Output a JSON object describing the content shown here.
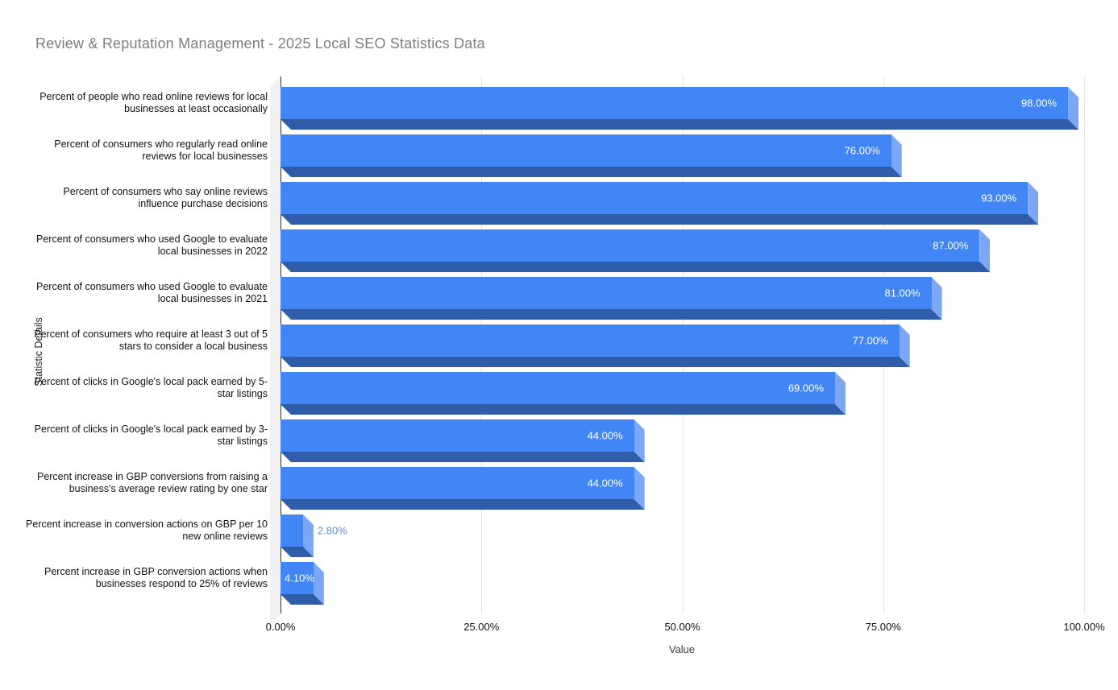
{
  "title": "Review & Reputation Management - 2025 Local SEO Statistics Data",
  "chart_data": {
    "type": "bar",
    "orientation": "horizontal",
    "title": "Review & Reputation Management - 2025 Local SEO Statistics Data",
    "categories": [
      "Percent of people who read online reviews for local businesses at least occasionally",
      "Percent of consumers who regularly read online reviews for local businesses",
      "Percent of consumers who say online reviews influence purchase decisions",
      "Percent of consumers who used Google to evaluate local businesses in 2022",
      "Percent of consumers who used Google to evaluate local businesses in 2021",
      "Percent of consumers who require at least 3 out of 5 stars to consider a local business",
      "Percent of clicks in Google's local pack earned by 5-star listings",
      "Percent of clicks in Google's local pack earned by 3-star listings",
      "Percent increase in GBP conversions from raising a business's average review rating by one star",
      "Percent increase in conversion actions on GBP per 10 new online reviews",
      "Percent increase in GBP conversion actions when businesses respond to 25% of reviews"
    ],
    "values": [
      98,
      76,
      93,
      87,
      81,
      77,
      69,
      44,
      44,
      2.8,
      4.1
    ],
    "value_labels": [
      "98.00%",
      "76.00%",
      "93.00%",
      "87.00%",
      "81.00%",
      "77.00%",
      "69.00%",
      "44.00%",
      "44.00%",
      "2.80%",
      "4.10%"
    ],
    "xlabel": "Value",
    "ylabel": "Statistic Details",
    "xlim": [
      0,
      100
    ],
    "x_ticks": [
      "0.00%",
      "25.00%",
      "50.00%",
      "75.00%",
      "100.00%"
    ],
    "grid": "vertical",
    "legend": "none"
  },
  "colors": {
    "bar_face": "#4285f4",
    "bar_bottom": "#2f5da9",
    "bar_side": "#7da7f5",
    "value_label_inside": "#ffffff",
    "value_label_outside": "#5f8ddd",
    "gridline": "#e3e3e3",
    "axis_line": "#333333",
    "wall": "#f1f1f2",
    "title_text": "#7e7e7e"
  }
}
